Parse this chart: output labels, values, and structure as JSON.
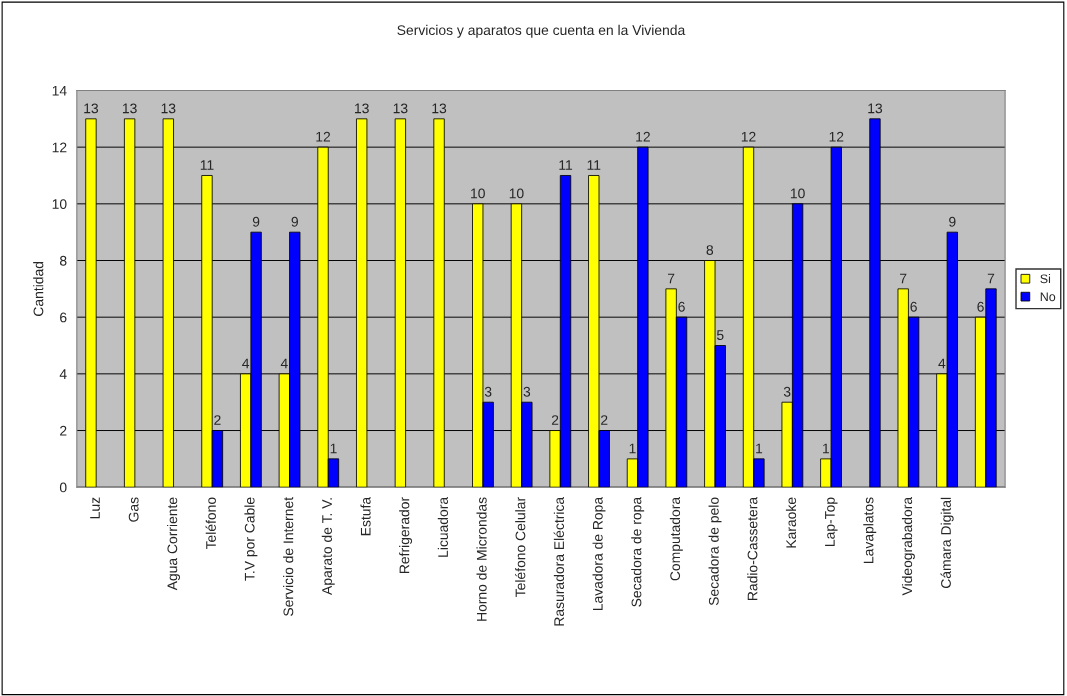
{
  "chart_data": {
    "type": "bar",
    "title": "Servicios y aparatos que cuenta en la Vivienda",
    "ylabel": "Cantidad",
    "categories": [
      "Luz",
      "Gas",
      "Agua Corriente",
      "Teléfono",
      "T.V por Cable",
      "Servicio de Internet",
      "Aparato de T. V.",
      "Estufa",
      "Refrigerador",
      "Licuadora",
      "Horno de Microndas",
      "Teléfono Celular",
      "Rasuradora Eléctrica",
      "Lavadora de Ropa",
      "Secadora de ropa",
      "Computadora",
      "Secadora de pelo",
      "Radio-Cassetera",
      "Karaoke",
      "Lap-Top",
      "Lavaplatos",
      "Videograbadora",
      "Cámara Digital",
      null
    ],
    "series": [
      {
        "name": "Si",
        "color": "#ffff00",
        "values": [
          13,
          13,
          13,
          11,
          4,
          4,
          12,
          13,
          13,
          13,
          10,
          10,
          2,
          11,
          1,
          7,
          8,
          12,
          3,
          1,
          null,
          7,
          4,
          6
        ]
      },
      {
        "name": "No",
        "color": "#0000ff",
        "values": [
          null,
          null,
          null,
          2,
          9,
          9,
          1,
          null,
          null,
          null,
          3,
          3,
          11,
          2,
          12,
          6,
          5,
          1,
          10,
          12,
          13,
          6,
          9,
          7
        ]
      }
    ],
    "ylim": [
      0,
      14
    ],
    "yticks": [
      0,
      2,
      4,
      6,
      8,
      10,
      12,
      14
    ],
    "grid": "y",
    "legend": "right",
    "data_labels": true
  }
}
